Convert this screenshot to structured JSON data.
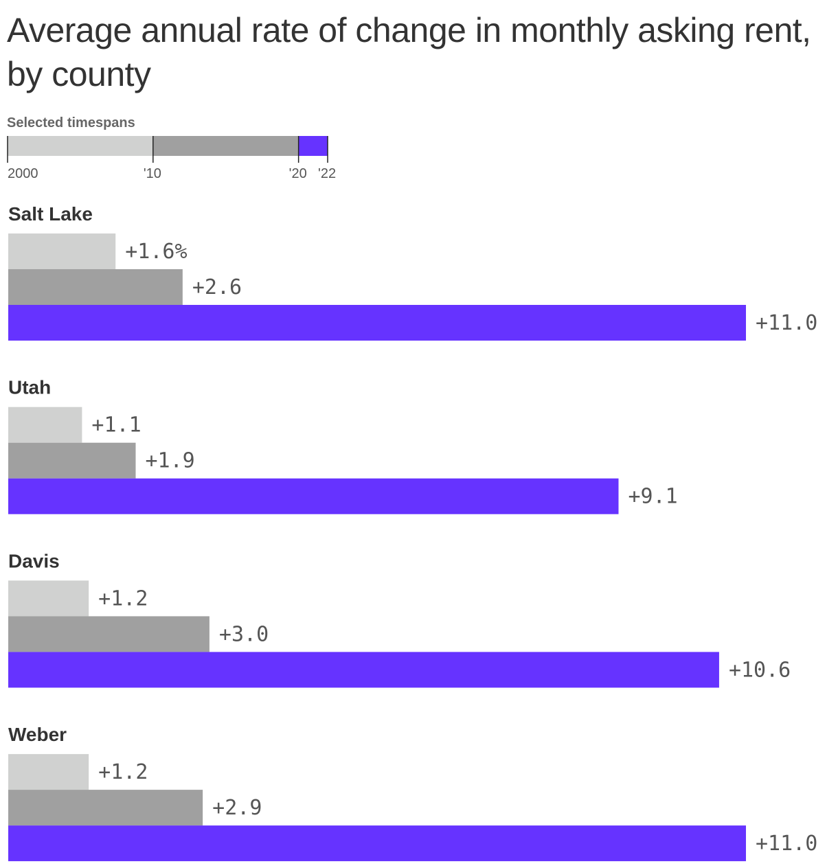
{
  "title": "Average annual rate of change in monthly asking rent, by county",
  "legend": {
    "title": "Selected timespans",
    "segments": [
      {
        "start": 2000,
        "end": 2010,
        "color": "#d0d1d0"
      },
      {
        "start": 2010,
        "end": 2020,
        "color": "#a0a0a0"
      },
      {
        "start": 2020,
        "end": 2022,
        "color": "#6633ff"
      }
    ],
    "ticks": [
      {
        "year": 2000,
        "label": "2000"
      },
      {
        "year": 2010,
        "label": "'10"
      },
      {
        "year": 2020,
        "label": "'20"
      },
      {
        "year": 2022,
        "label": "'22"
      }
    ]
  },
  "chart_data": {
    "type": "bar",
    "orientation": "horizontal",
    "title": "Average annual rate of change in monthly asking rent, by county",
    "categories": [
      "Salt Lake",
      "Utah",
      "Davis",
      "Weber"
    ],
    "series": [
      {
        "values": [
          1.6,
          1.1,
          1.2,
          1.2
        ],
        "labels": [
          "+1.6%",
          "+1.1",
          "+1.2",
          "+1.2"
        ],
        "color": "#d0d1d0"
      },
      {
        "values": [
          2.6,
          1.9,
          3.0,
          2.9
        ],
        "labels": [
          "+2.6",
          "+1.9",
          "+3.0",
          "+2.9"
        ],
        "color": "#a0a0a0"
      },
      {
        "values": [
          11.0,
          9.1,
          10.6,
          11.0
        ],
        "labels": [
          "+11.0",
          "+9.1",
          "+10.6",
          "+11.0"
        ],
        "color": "#6633ff"
      }
    ],
    "xlim": [
      0,
      11.0
    ],
    "grid": false
  }
}
